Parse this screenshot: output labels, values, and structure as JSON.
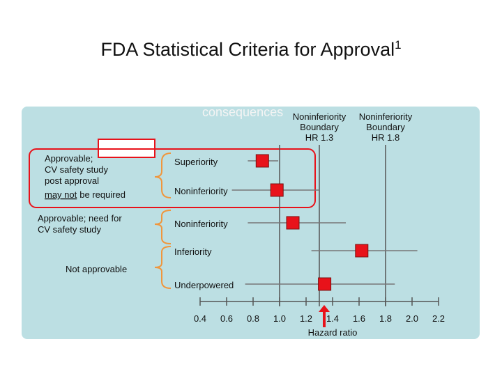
{
  "chart_data": {
    "type": "forest",
    "title": "FDA Statistical Criteria for Approval",
    "title_superscript": "1",
    "overlay_text": "consequences",
    "xlabel": "Hazard ratio",
    "xlim": [
      0.4,
      2.2
    ],
    "xticks": [
      0.4,
      0.6,
      0.8,
      {
        "value": 1,
        "label": "1.0"
      },
      1.2,
      1.4,
      1.6,
      1.8,
      {
        "value": 2,
        "label": "2.0"
      },
      2.2
    ],
    "reference_line": 1,
    "boundaries": [
      {
        "value": 1.3,
        "lines": [
          "Noninferiority",
          "Boundary",
          "HR 1.3"
        ]
      },
      {
        "value": 1.8,
        "lines": [
          "Noninferiority",
          "Boundary",
          "HR 1.8"
        ]
      }
    ],
    "color": "#e8121a",
    "rows": [
      {
        "label": "Superiority",
        "estimate": 0.87,
        "lower": 0.76,
        "upper": 0.99
      },
      {
        "label": "Noninferiority",
        "estimate": 0.98,
        "lower": 0.64,
        "upper": 1.3
      },
      {
        "label": "Noninferiority",
        "estimate": 1.1,
        "lower": 0.76,
        "upper": 1.5
      },
      {
        "label": "Inferiority",
        "estimate": 1.62,
        "lower": 1.24,
        "upper": 2.04
      },
      {
        "label": "Underpowered",
        "estimate": 1.34,
        "lower": 0.74,
        "upper": 1.87
      }
    ],
    "outcome_groups": [
      {
        "lines": [
          "Approvable;",
          "CV safety study",
          "post approval"
        ],
        "underlined": "may not",
        "rest": "be required"
      },
      {
        "lines": [
          "Approvable; need for",
          "CV safety study"
        ]
      },
      {
        "lines": [
          "Not approvable"
        ]
      }
    ]
  }
}
